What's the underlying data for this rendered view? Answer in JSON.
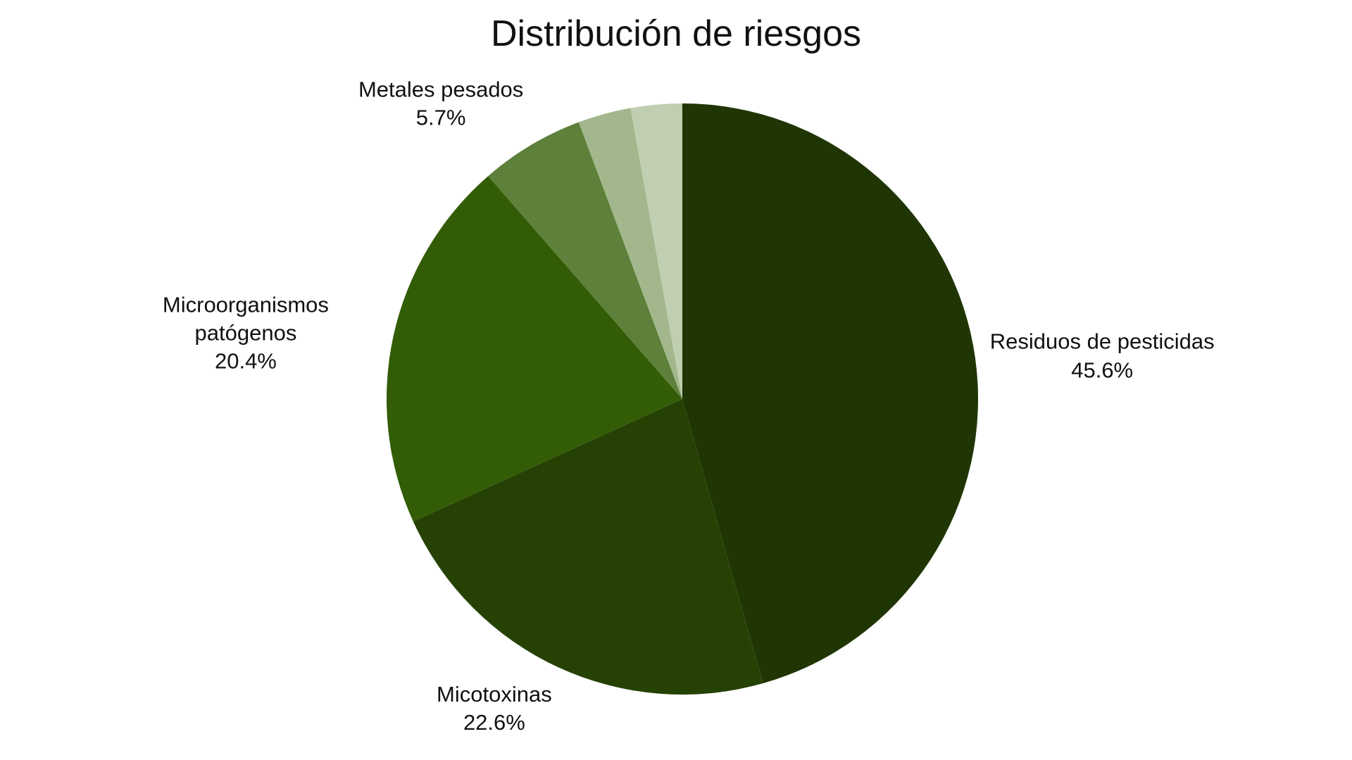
{
  "chart_data": {
    "type": "pie",
    "title": "Distribución de riesgos",
    "categories": [
      "Residuos de pesticidas",
      "Micotoxinas",
      "Microorganismos patógenos",
      "Metales pesados",
      null,
      null
    ],
    "values": [
      45.6,
      22.6,
      20.4,
      5.7,
      2.9,
      2.8
    ],
    "value_labels": [
      "45.6%",
      "22.6%",
      "20.4%",
      "5.7%",
      null,
      null
    ],
    "colors": [
      "#1f3604",
      "#254204",
      "#335c06",
      "#5e803a",
      "#a2b88c",
      "#c0cfb2"
    ]
  }
}
